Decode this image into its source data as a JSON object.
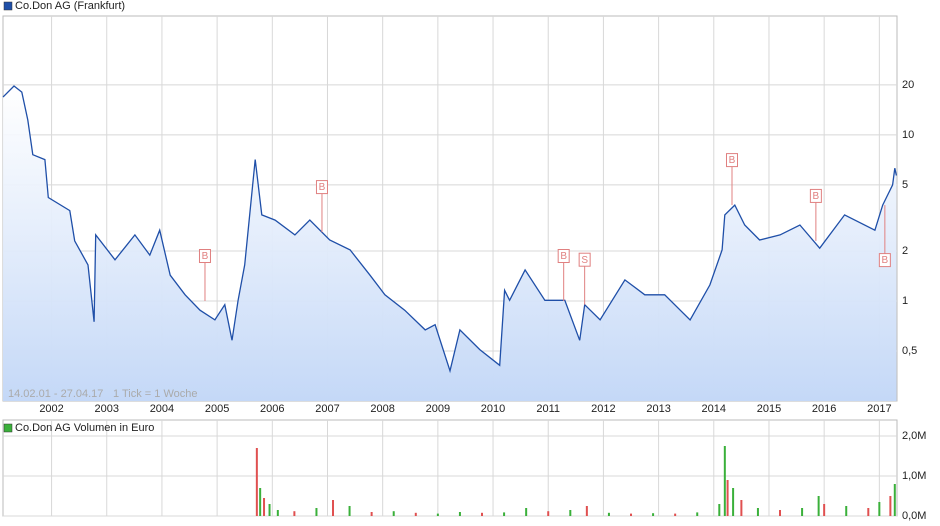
{
  "chart_data": [
    {
      "type": "line",
      "series": [
        {
          "name": "Co.Don AG (Frankfurt)",
          "color": "#1f4fa8",
          "values": [
            16.9,
            19.7,
            18.1,
            12.3,
            7.6,
            7.1,
            4.2,
            3.5,
            2.3,
            1.65,
            0.75,
            2.5,
            1.77,
            2.5,
            1.89,
            2.67,
            1.43,
            1.09,
            0.88,
            0.77,
            0.95,
            0.58,
            1.01,
            1.65,
            7.1,
            3.3,
            3.07,
            2.5,
            3.07,
            2.33,
            2.03,
            1.43,
            1.09,
            0.88,
            0.67,
            0.72,
            0.38,
            0.67,
            0.51,
            0.41,
            1.16,
            1.01,
            1.54,
            1.01,
            1.01,
            0.58,
            0.95,
            0.77,
            1.34,
            1.09,
            1.09,
            0.77,
            1.25,
            2.03,
            3.3,
            3.78,
            2.87,
            2.33,
            2.5,
            2.87,
            2.08,
            3.3,
            2.67,
            3.78,
            5.0,
            6.3,
            5.7
          ]
        }
      ],
      "x": [
        2001.12,
        2001.32,
        2001.46,
        2001.57,
        2001.66,
        2001.88,
        2001.94,
        2002.33,
        2002.42,
        2002.66,
        2002.77,
        2002.8,
        2003.15,
        2003.51,
        2003.78,
        2003.96,
        2004.15,
        2004.42,
        2004.69,
        2004.96,
        2005.14,
        2005.27,
        2005.38,
        2005.5,
        2005.69,
        2005.81,
        2006.05,
        2006.41,
        2006.68,
        2007.04,
        2007.41,
        2007.77,
        2008.04,
        2008.4,
        2008.77,
        2008.95,
        2009.22,
        2009.4,
        2009.76,
        2010.12,
        2010.21,
        2010.3,
        2010.58,
        2010.94,
        2011.3,
        2011.57,
        2011.66,
        2011.94,
        2012.39,
        2012.75,
        2013.11,
        2013.57,
        2013.93,
        2014.15,
        2014.2,
        2014.38,
        2014.56,
        2014.83,
        2015.2,
        2015.56,
        2015.92,
        2016.37,
        2016.92,
        2017.06,
        2017.24,
        2017.28,
        2017.31
      ],
      "xlim": [
        2001.12,
        2017.32
      ],
      "xticks": [
        2002,
        2003,
        2004,
        2005,
        2006,
        2007,
        2008,
        2009,
        2010,
        2011,
        2012,
        2013,
        2014,
        2015,
        2016,
        2017
      ],
      "ylim": [
        0.25,
        52
      ],
      "log_scale": true,
      "yticks": [
        {
          "value": 0.5,
          "label": "0,5"
        },
        1,
        2,
        5,
        10,
        20
      ],
      "grid": true,
      "area_color": "#c4d8f7",
      "date_range": "14.02.01 - 27.04.17",
      "tick_note": "1 Tick = 1 Woche",
      "signal_color": "#e08080",
      "signals": [
        {
          "x": 2004.78,
          "value": 1.0,
          "label": "B",
          "placement": "above"
        },
        {
          "x": 2006.9,
          "value": 2.6,
          "label": "B",
          "placement": "above"
        },
        {
          "x": 2011.28,
          "value": 1.0,
          "label": "B",
          "placement": "above"
        },
        {
          "x": 2011.66,
          "value": 0.95,
          "label": "S",
          "placement": "above"
        },
        {
          "x": 2014.33,
          "value": 3.78,
          "label": "B",
          "placement": "above"
        },
        {
          "x": 2015.85,
          "value": 2.3,
          "label": "B",
          "placement": "above"
        },
        {
          "x": 2017.1,
          "value": 3.78,
          "label": "B",
          "placement": "below"
        }
      ]
    },
    {
      "type": "bar",
      "series": [
        {
          "name": "Co.Don AG Volumen in Euro",
          "color": "#3ab03a",
          "values": [
            1700000,
            700000,
            450000,
            300000,
            150000,
            120000,
            200000,
            400000,
            250000,
            100000,
            120000,
            80000,
            60000,
            100000,
            80000,
            90000,
            200000,
            120000,
            150000,
            250000,
            80000,
            60000,
            70000,
            60000,
            90000,
            300000,
            1750000,
            900000,
            700000,
            400000,
            200000,
            150000,
            200000,
            500000,
            300000,
            250000,
            200000,
            350000,
            500000,
            800000
          ],
          "colors": [
            "#e05050",
            "#3ab03a",
            "#e05050",
            "#3ab03a",
            "#3ab03a",
            "#e05050",
            "#3ab03a",
            "#e05050",
            "#3ab03a",
            "#e05050",
            "#3ab03a",
            "#e05050",
            "#3ab03a",
            "#3ab03a",
            "#e05050",
            "#3ab03a",
            "#3ab03a",
            "#e05050",
            "#3ab03a",
            "#e05050",
            "#3ab03a",
            "#e05050",
            "#3ab03a",
            "#e05050",
            "#3ab03a",
            "#3ab03a",
            "#3ab03a",
            "#e05050",
            "#3ab03a",
            "#e05050",
            "#3ab03a",
            "#e05050",
            "#3ab03a",
            "#3ab03a",
            "#e05050",
            "#3ab03a",
            "#e05050",
            "#3ab03a",
            "#e05050",
            "#3ab03a"
          ]
        }
      ],
      "x": [
        2005.72,
        2005.78,
        2005.85,
        2005.95,
        2006.1,
        2006.4,
        2006.8,
        2007.1,
        2007.4,
        2007.8,
        2008.2,
        2008.6,
        2009.0,
        2009.4,
        2009.8,
        2010.2,
        2010.6,
        2011.0,
        2011.4,
        2011.7,
        2012.1,
        2012.5,
        2012.9,
        2013.3,
        2013.7,
        2014.1,
        2014.2,
        2014.25,
        2014.35,
        2014.5,
        2014.8,
        2015.2,
        2015.6,
        2015.9,
        2016.0,
        2016.4,
        2016.8,
        2017.0,
        2017.2,
        2017.28
      ],
      "xlim": [
        2001.12,
        2017.32
      ],
      "xticks": [
        2002,
        2003,
        2004,
        2005,
        2006,
        2007,
        2008,
        2009,
        2010,
        2011,
        2012,
        2013,
        2014,
        2015,
        2016,
        2017
      ],
      "ylim": [
        0,
        2400000
      ],
      "yticks": [
        {
          "value": 0,
          "label": "0,0M"
        },
        {
          "value": 1000000,
          "label": "1,0M"
        },
        {
          "value": 2000000,
          "label": "2,0M"
        }
      ],
      "grid": true
    }
  ]
}
